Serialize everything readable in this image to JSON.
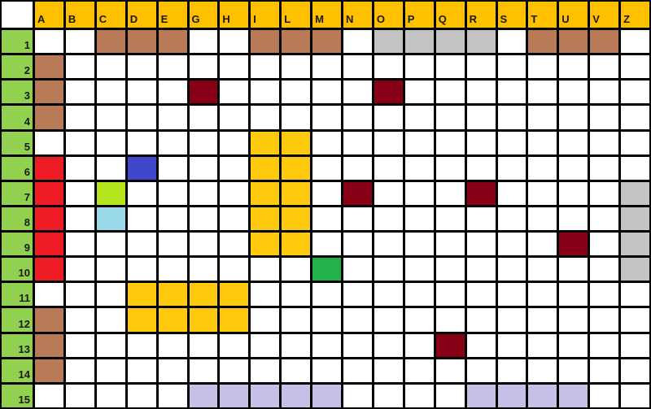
{
  "columns": [
    "A",
    "B",
    "C",
    "D",
    "E",
    "G",
    "H",
    "I",
    "L",
    "M",
    "N",
    "O",
    "P",
    "Q",
    "R",
    "S",
    "T",
    "U",
    "V",
    "Z"
  ],
  "rows": [
    "1",
    "2",
    "3",
    "4",
    "5",
    "6",
    "7",
    "8",
    "9",
    "10",
    "11",
    "12",
    "13",
    "14",
    "15"
  ],
  "colors": {
    ".": "#ffffff",
    "b": "#b97a57",
    "g": "#c3c3c3",
    "r": "#880015",
    "R": "#ed1c24",
    "B": "#3f48cc",
    "l": "#b5e61d",
    "c": "#99d9ea",
    "y": "#ffc90e",
    "G": "#22b14c",
    "p": "#c8bfe7"
  },
  "header_colors": {
    "column_header": "#ffc000",
    "row_header": "#92d050"
  },
  "cells": [
    "..bbb..bbb.gggg.bbb.",
    "b...................",
    "b....r.....r........",
    "b...................",
    ".......yy...........",
    "R..B...yy...........",
    "R.l....yy.r...r....g",
    "R.c....yy..........g",
    "R......yy........r.g",
    "R........G.........g",
    "...yyyy.............",
    "b..yyyy.............",
    "b............r......",
    "b...................",
    ".....ppppp....pppp.."
  ]
}
